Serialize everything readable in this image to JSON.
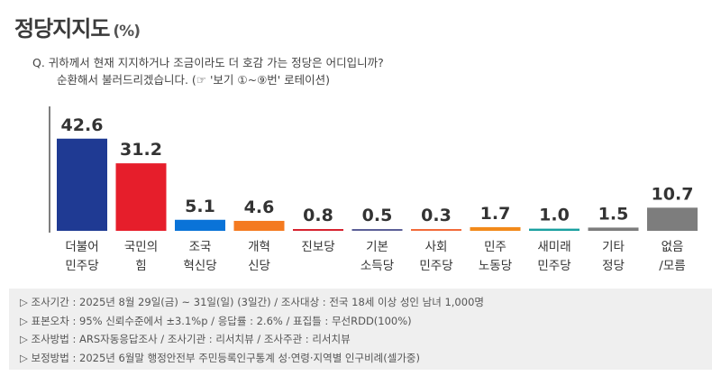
{
  "header": {
    "title": "정당지지도",
    "unit": "(%)"
  },
  "question": {
    "line1": "Q. 귀하께서 현재 지지하거나 조금이라도 더 호감 가는 정당은 어디입니까?",
    "line2": "순환해서 불러드리겠습니다. (☞ '보기 ①~⑨번' 로테이션)"
  },
  "chart_data": {
    "type": "bar",
    "categories": [
      [
        "더불어",
        "민주당"
      ],
      [
        "국민의",
        "힘"
      ],
      [
        "조국",
        "혁신당"
      ],
      [
        "개혁",
        "신당"
      ],
      [
        "진보당"
      ],
      [
        "기본",
        "소득당"
      ],
      [
        "사회",
        "민주당"
      ],
      [
        "민주",
        "노동당"
      ],
      [
        "새미래",
        "민주당"
      ],
      [
        "기타",
        "정당"
      ],
      [
        "없음",
        "/모름"
      ]
    ],
    "values": [
      42.6,
      31.2,
      5.1,
      4.6,
      0.8,
      0.5,
      0.3,
      1.7,
      1.0,
      1.5,
      10.7
    ],
    "value_labels": [
      "42.6",
      "31.2",
      "5.1",
      "4.6",
      "0.8",
      "0.5",
      "0.3",
      "1.7",
      "1.0",
      "1.5",
      "10.7"
    ],
    "colors": [
      "#1f3a93",
      "#e61e2b",
      "#0a73d8",
      "#f47a20",
      "#d6232f",
      "#5b5f97",
      "#f26b3a",
      "#f28a1a",
      "#1aa0a0",
      "#7d7d7d",
      "#7d7d7d"
    ],
    "ylim": [
      0,
      50
    ],
    "grid": false,
    "title": "",
    "xlabel": "",
    "ylabel": ""
  },
  "footer": {
    "lines": [
      "▷ 조사기간 : 2025년 8월 29일(금) ~ 31일(일) (3일간) / 조사대상 : 전국 18세 이상 성인 남녀 1,000명",
      "▷ 표본오차 : 95% 신뢰수준에서 ±3.1%p / 응답률 : 2.6% / 표집틀 : 무선RDD(100%)",
      "▷ 조사방법 : ARS자동응답조사 / 조사기관 : 리서치뷰 / 조사주관 : 리서치뷰",
      "▷ 보정방법 : 2025년 6월말 행정안전부 주민등록인구통계 성·연령·지역별 인구비례(셀가중)"
    ]
  }
}
